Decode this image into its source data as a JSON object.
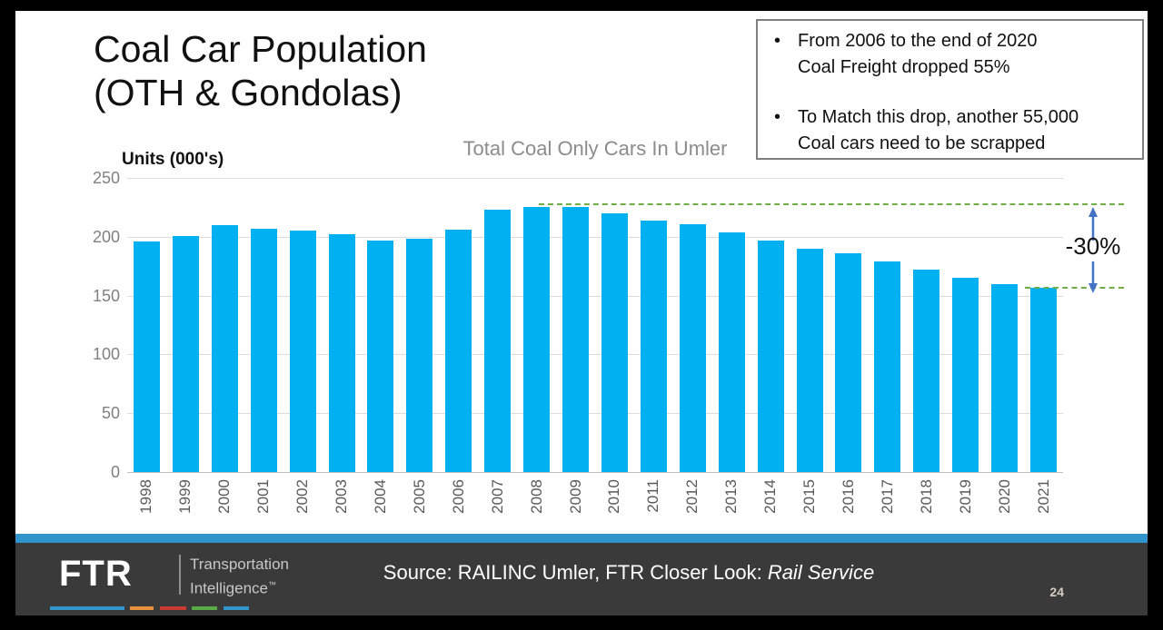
{
  "slide": {
    "title": "Coal Car Population\n(OTH & Gondolas)",
    "page_number": "24"
  },
  "callout": {
    "bullets": [
      "From 2006 to the end of 2020\nCoal Freight dropped 55%",
      "To Match this drop, another 55,000\nCoal cars need to be scrapped"
    ]
  },
  "chart_data": {
    "type": "bar",
    "title": "Total Coal Only Cars In Umler",
    "ylabel": "Units (000's)",
    "xlabel": "",
    "categories": [
      "1998",
      "1999",
      "2000",
      "2001",
      "2002",
      "2003",
      "2004",
      "2005",
      "2006",
      "2007",
      "2008",
      "2009",
      "2010",
      "2011",
      "2012",
      "2013",
      "2014",
      "2015",
      "2016",
      "2017",
      "2018",
      "2019",
      "2020",
      "2021"
    ],
    "values": [
      196,
      201,
      210,
      207,
      205,
      202,
      197,
      198,
      206,
      223,
      225,
      225,
      220,
      214,
      211,
      204,
      197,
      190,
      186,
      179,
      172,
      165,
      160,
      157
    ],
    "ylim": [
      0,
      250
    ],
    "yticks": [
      0,
      50,
      100,
      150,
      200,
      250
    ],
    "grid": true,
    "legend": false,
    "bar_color": "#00b0f0",
    "annotations": {
      "upper_ref_value": 228,
      "lower_ref_value": 157,
      "ref_line_color": "#70ad47",
      "arrow_color": "#4472c4",
      "delta_label": "-30%"
    }
  },
  "footer": {
    "logo_text": "FTR",
    "logo_sub_line1": "Transportation",
    "logo_sub_line2": "Intelligence",
    "logo_trademark": "™",
    "source_prefix": "Source: RAILINC Umler, FTR Closer Look: ",
    "source_italic": "Rail Service",
    "accent_colors": [
      "#3195cd",
      "#e8913d",
      "#cc3b33",
      "#5aab46",
      "#3195cd"
    ]
  }
}
